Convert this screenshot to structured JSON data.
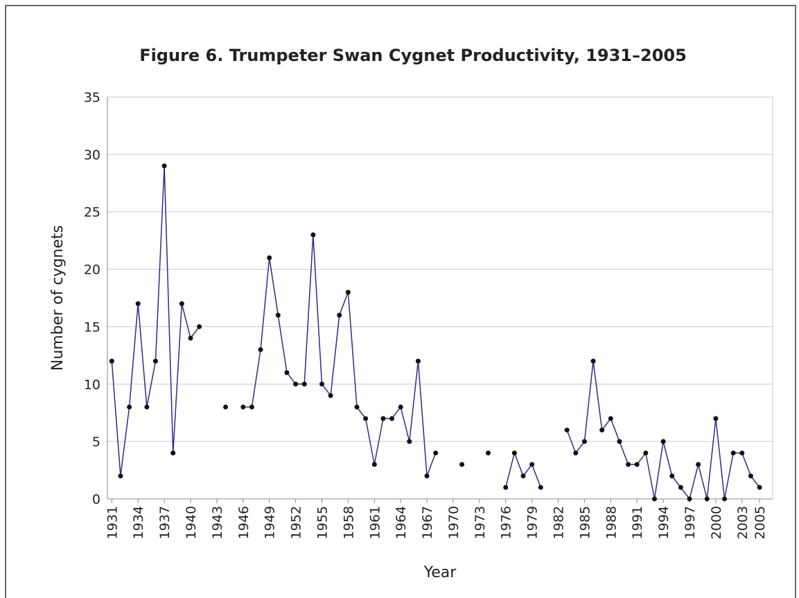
{
  "chart_data": {
    "type": "line",
    "title": "Figure 6. Trumpeter Swan Cygnet Productivity, 1931–2005",
    "xlabel": "Year",
    "ylabel": "Number of cygnets",
    "x": [
      1931,
      1932,
      1933,
      1934,
      1935,
      1936,
      1937,
      1938,
      1939,
      1940,
      1941,
      1942,
      1943,
      1944,
      1945,
      1946,
      1947,
      1948,
      1949,
      1950,
      1951,
      1952,
      1953,
      1954,
      1955,
      1956,
      1957,
      1958,
      1959,
      1960,
      1961,
      1962,
      1963,
      1964,
      1965,
      1966,
      1967,
      1968,
      1969,
      1970,
      1971,
      1972,
      1973,
      1974,
      1975,
      1976,
      1977,
      1978,
      1979,
      1980,
      1981,
      1982,
      1983,
      1984,
      1985,
      1986,
      1987,
      1988,
      1989,
      1990,
      1991,
      1992,
      1993,
      1994,
      1995,
      1996,
      1997,
      1998,
      1999,
      2000,
      2001,
      2002,
      2003,
      2004,
      2005
    ],
    "series": [
      {
        "color": "#2b2b8c",
        "values": [
          12,
          2,
          8,
          17,
          8,
          12,
          29,
          4,
          17,
          14,
          15,
          null,
          null,
          8,
          null,
          8,
          8,
          13,
          21,
          16,
          11,
          10,
          10,
          23,
          10,
          9,
          16,
          18,
          8,
          7,
          3,
          7,
          7,
          8,
          5,
          12,
          2,
          4,
          null,
          null,
          3,
          null,
          null,
          4,
          null,
          1,
          4,
          2,
          3,
          1,
          null,
          null,
          6,
          4,
          5,
          12,
          6,
          7,
          5,
          3,
          3,
          4,
          0,
          5,
          2,
          1,
          0,
          3,
          0,
          7,
          0,
          4,
          4,
          2,
          1
        ]
      }
    ],
    "xlim": [
      1930.5,
      2006.5
    ],
    "xticks": [
      1931,
      1934,
      1937,
      1940,
      1943,
      1946,
      1949,
      1952,
      1955,
      1958,
      1961,
      1964,
      1967,
      1970,
      1973,
      1976,
      1979,
      1982,
      1985,
      1988,
      1991,
      1994,
      1997,
      2000,
      2003,
      2005
    ],
    "ylim": [
      0,
      35
    ],
    "yticks": [
      0,
      5,
      10,
      15,
      20,
      25,
      30,
      35
    ],
    "grid": true
  }
}
